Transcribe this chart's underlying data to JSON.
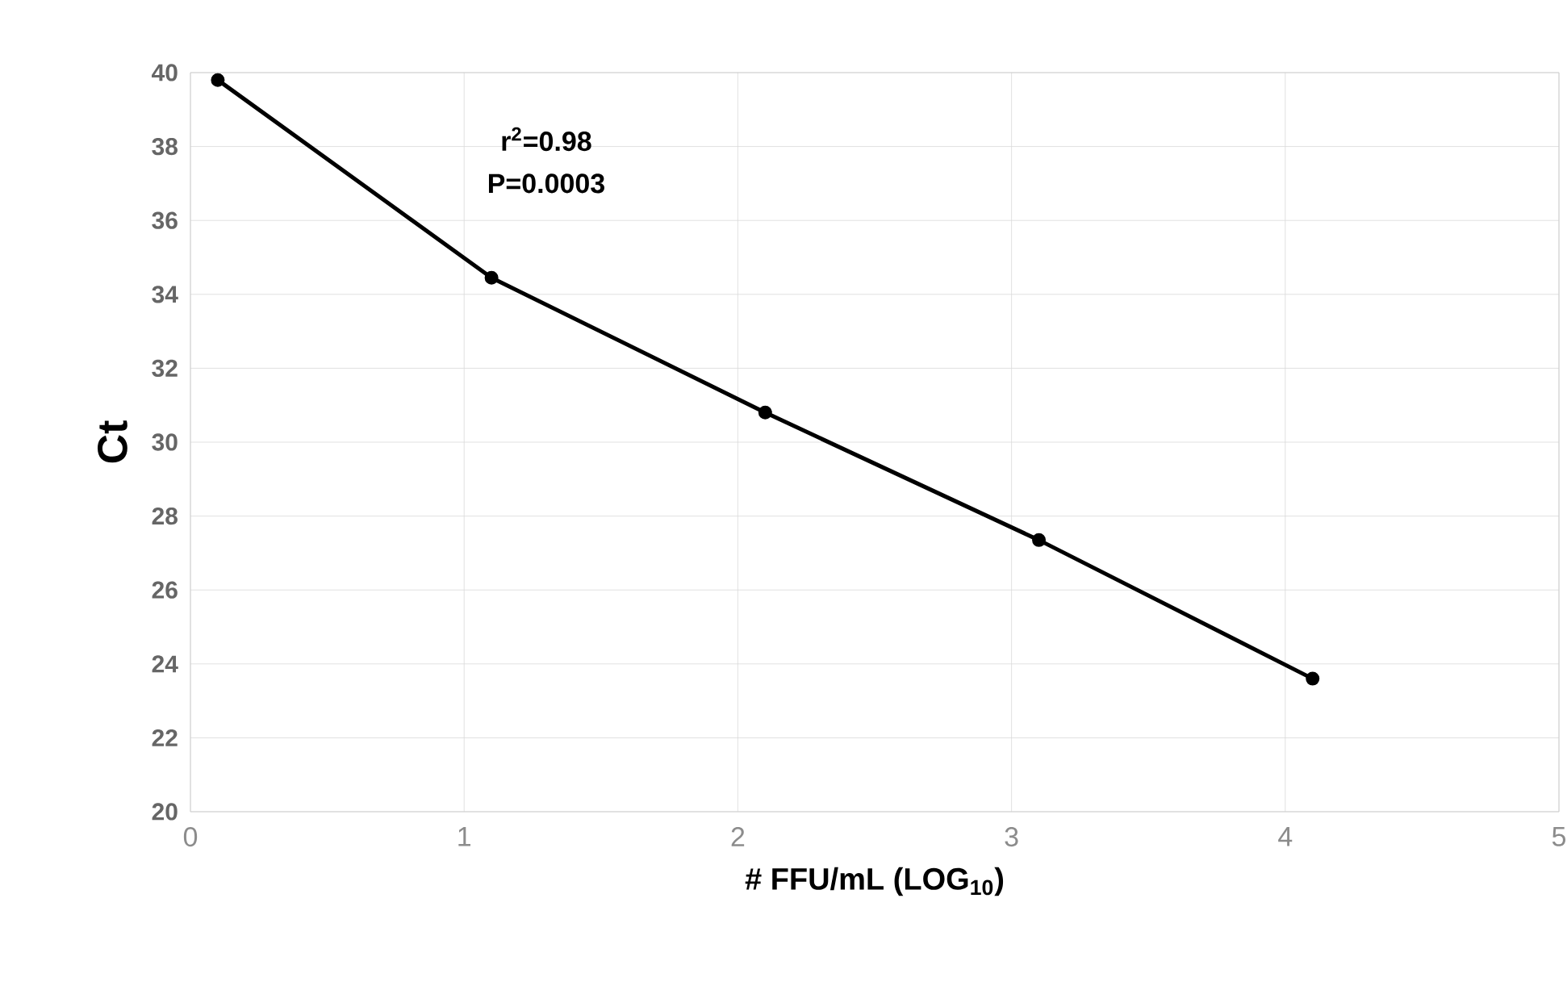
{
  "chart_data": {
    "type": "line",
    "xlabel": "# FFU/mL (LOG$_{10}$)",
    "ylabel": "Ct",
    "x": [
      0.1,
      1.1,
      2.1,
      3.1,
      4.1
    ],
    "series": [
      {
        "color": "#000000",
        "values": [
          39.8,
          34.45,
          30.8,
          27.35,
          23.6
        ]
      }
    ],
    "xlim": [
      0,
      5
    ],
    "xticks": [
      0,
      1,
      2,
      3,
      4,
      5
    ],
    "ylim": [
      20,
      40
    ],
    "yticks": [
      20,
      22,
      24,
      26,
      28,
      30,
      32,
      34,
      36,
      38,
      40
    ],
    "grid": true,
    "marker": "circle",
    "line_style": "solid",
    "annotations": [
      "r$^{2}$=0.98",
      "P=0.0003"
    ]
  }
}
